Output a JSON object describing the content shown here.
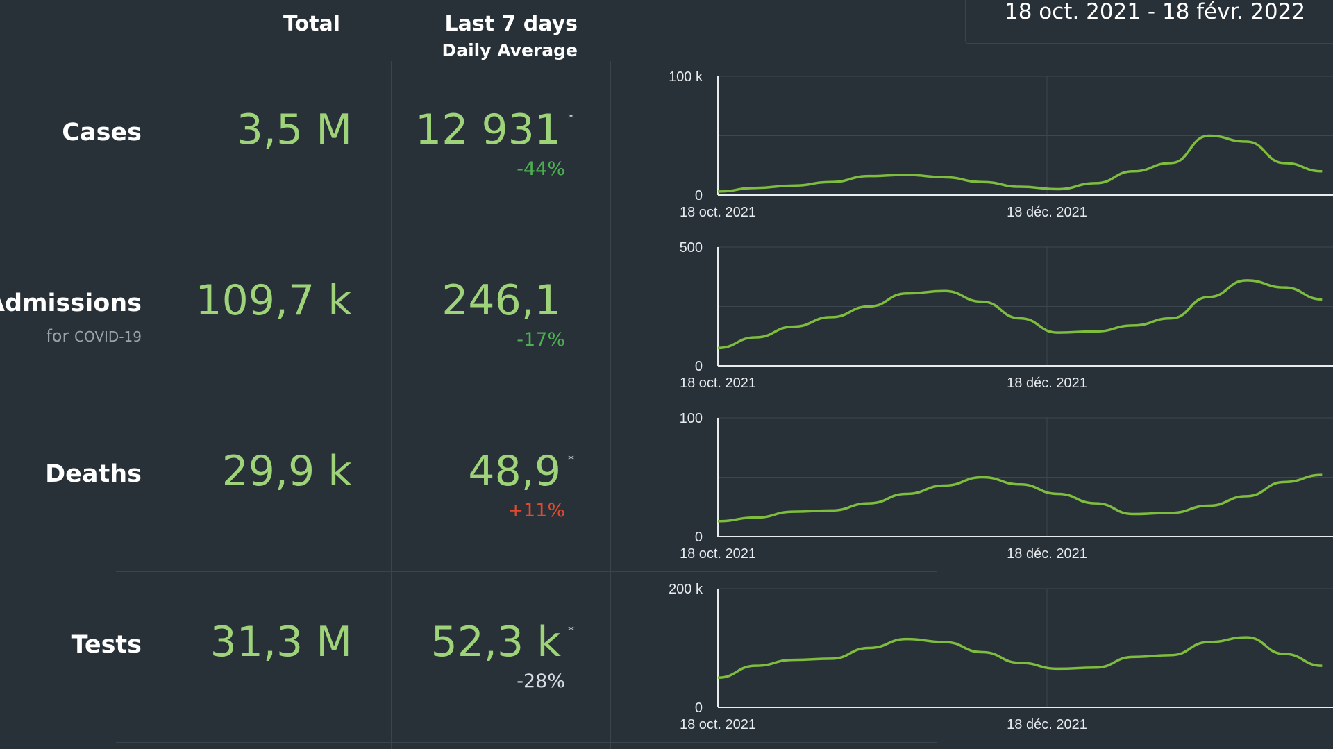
{
  "header": {
    "total": "Total",
    "last7": "Last 7 days",
    "daily_avg": "Daily Average"
  },
  "date_range": "18 oct. 2021 - 18 févr. 2022",
  "colors": {
    "background": "#283138",
    "value_green": "#9fd37a",
    "change_green": "#4caf50",
    "change_red": "#e0492f",
    "change_neutral": "#d9dee2",
    "line": "#7fbd3f"
  },
  "rows": [
    {
      "label": "Cases",
      "sub": "",
      "total": "3,5 M",
      "avg": "12 931",
      "star": "*",
      "change": "-44%"
    },
    {
      "label": "al Admissions",
      "sub_for": "for",
      "sub_small": "COVID-19",
      "total": "109,7 k",
      "avg": "246,1",
      "star": "",
      "change": "-17%"
    },
    {
      "label": "Deaths",
      "sub": "",
      "total": "29,9 k",
      "avg": "48,9",
      "star": "*",
      "change": "+11%"
    },
    {
      "label": "Tests",
      "sub": "",
      "total": "31,3 M",
      "avg": "52,3 k",
      "star": "*",
      "change": "-28%"
    }
  ],
  "chart_data": [
    {
      "type": "line",
      "x_tick_labels": [
        "18 oct. 2021",
        "18 déc. 2021"
      ],
      "y_tick_labels": [
        "0",
        "100 k"
      ],
      "ylim": [
        0,
        100000
      ],
      "x": [
        "2021-10-18",
        "2021-10-25",
        "2021-11-01",
        "2021-11-08",
        "2021-11-15",
        "2021-11-22",
        "2021-11-29",
        "2021-12-06",
        "2021-12-13",
        "2021-12-20",
        "2021-12-27",
        "2022-01-03",
        "2022-01-10",
        "2022-01-17",
        "2022-01-24",
        "2022-01-31",
        "2022-02-07"
      ],
      "values": [
        3000,
        6000,
        8000,
        11000,
        16000,
        17000,
        15000,
        11000,
        7000,
        5000,
        10000,
        20000,
        27000,
        50000,
        45000,
        27000,
        20000
      ]
    },
    {
      "type": "line",
      "x_tick_labels": [
        "18 oct. 2021",
        "18 déc. 2021"
      ],
      "y_tick_labels": [
        "0",
        "500"
      ],
      "ylim": [
        0,
        500
      ],
      "x": [
        "2021-10-18",
        "2021-10-25",
        "2021-11-01",
        "2021-11-08",
        "2021-11-15",
        "2021-11-22",
        "2021-11-29",
        "2021-12-06",
        "2021-12-13",
        "2021-12-20",
        "2021-12-27",
        "2022-01-03",
        "2022-01-10",
        "2022-01-17",
        "2022-01-24",
        "2022-01-31",
        "2022-02-07"
      ],
      "values": [
        75,
        120,
        165,
        205,
        250,
        305,
        315,
        270,
        200,
        140,
        145,
        170,
        200,
        290,
        360,
        330,
        280
      ]
    },
    {
      "type": "line",
      "x_tick_labels": [
        "18 oct. 2021",
        "18 déc. 2021"
      ],
      "y_tick_labels": [
        "0",
        "100"
      ],
      "ylim": [
        0,
        100
      ],
      "x": [
        "2021-10-18",
        "2021-10-25",
        "2021-11-01",
        "2021-11-08",
        "2021-11-15",
        "2021-11-22",
        "2021-11-29",
        "2021-12-06",
        "2021-12-13",
        "2021-12-20",
        "2021-12-27",
        "2022-01-03",
        "2022-01-10",
        "2022-01-17",
        "2022-01-24",
        "2022-01-31",
        "2022-02-07"
      ],
      "values": [
        13,
        16,
        21,
        22,
        28,
        36,
        43,
        50,
        44,
        36,
        28,
        19,
        20,
        26,
        34,
        46,
        52
      ]
    },
    {
      "type": "line",
      "x_tick_labels": [
        "18 oct. 2021",
        "18 déc. 2021"
      ],
      "y_tick_labels": [
        "0",
        "200 k"
      ],
      "ylim": [
        0,
        200000
      ],
      "x": [
        "2021-10-18",
        "2021-10-25",
        "2021-11-01",
        "2021-11-08",
        "2021-11-15",
        "2021-11-22",
        "2021-11-29",
        "2021-12-06",
        "2021-12-13",
        "2021-12-20",
        "2021-12-27",
        "2022-01-03",
        "2022-01-10",
        "2022-01-17",
        "2022-01-24",
        "2022-01-31",
        "2022-02-07"
      ],
      "values": [
        50000,
        70000,
        80000,
        82000,
        100000,
        115000,
        110000,
        93000,
        75000,
        65000,
        67000,
        85000,
        88000,
        110000,
        118000,
        90000,
        70000
      ]
    }
  ]
}
